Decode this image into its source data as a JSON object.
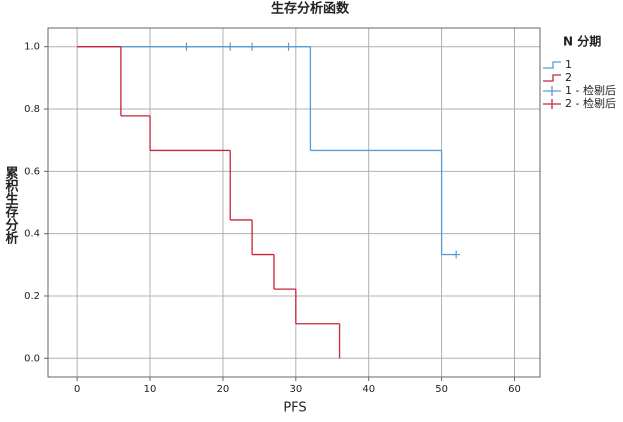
{
  "chart_data": {
    "type": "step",
    "title": "生存分析函数",
    "x_label": "PFS",
    "y_label": "累积生存分析",
    "legend_title": "N 分期",
    "legend_position": "right",
    "grid": true,
    "xlim": [
      -4,
      63.5
    ],
    "ylim": [
      -0.06,
      1.06
    ],
    "xticks": [
      0,
      10,
      20,
      30,
      40,
      50,
      60
    ],
    "yticks": [
      {
        "value": 0,
        "label": "0.0"
      },
      {
        "value": 0.2,
        "label": "0.2"
      },
      {
        "value": 0.4,
        "label": "0.4"
      },
      {
        "value": 0.6,
        "label": "0.6"
      },
      {
        "value": 0.8,
        "label": "0.8"
      },
      {
        "value": 1,
        "label": "1.0"
      }
    ],
    "series": [
      {
        "name": "1",
        "kind": "survival",
        "color": "#5b9bd5",
        "x": [
          0,
          32,
          50,
          52
        ],
        "values": [
          1,
          0.667,
          0.333,
          0.333
        ]
      },
      {
        "name": "2",
        "kind": "survival",
        "color": "#c8233f",
        "x": [
          0,
          6,
          10,
          21,
          24,
          27,
          30,
          36
        ],
        "values": [
          1,
          0.778,
          0.667,
          0.444,
          0.333,
          0.222,
          0.111,
          0
        ]
      },
      {
        "name": "1 - 检剔后",
        "kind": "censored",
        "color": "#5b9bd5",
        "x": [
          15,
          21,
          24,
          29,
          52
        ],
        "values": [
          1,
          1,
          1,
          1,
          0.333
        ]
      },
      {
        "name": "2 - 检剔后",
        "kind": "censored",
        "color": "#c8233f",
        "x": [],
        "values": []
      }
    ]
  }
}
